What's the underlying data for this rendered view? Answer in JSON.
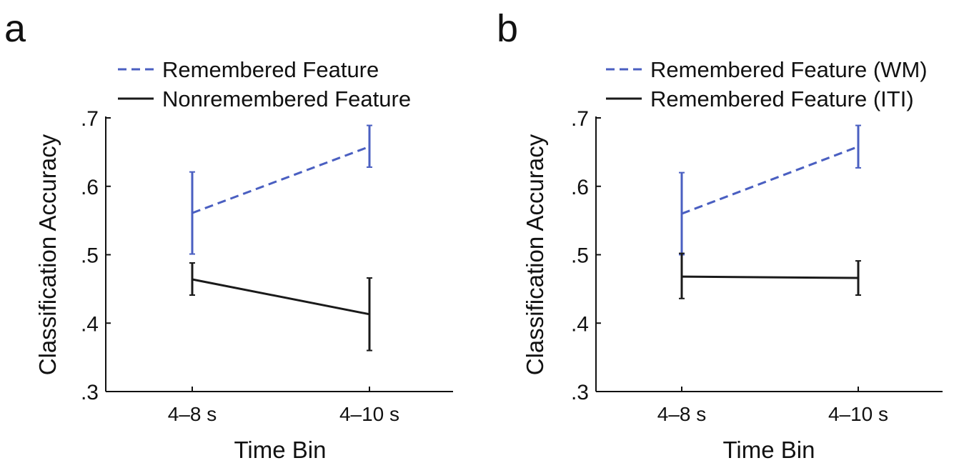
{
  "chart_data": [
    {
      "type": "line",
      "panel_label": "a",
      "categories": [
        "4–8 s",
        "4–10 s"
      ],
      "xlabel": "Time Bin",
      "ylabel": "Classification Accuracy",
      "ylim": [
        0.3,
        0.7
      ],
      "yticks": [
        0.3,
        0.4,
        0.5,
        0.6,
        0.7
      ],
      "ytick_labels": [
        ".3",
        ".4",
        ".5",
        ".6",
        ".7"
      ],
      "grid": false,
      "legend_position": "top",
      "series": [
        {
          "name": "Remembered Feature",
          "style": "dashed",
          "color": "#4a5fc1",
          "values": [
            0.561,
            0.658
          ],
          "error": [
            [
              0.501,
              0.621
            ],
            [
              0.628,
              0.689
            ]
          ]
        },
        {
          "name": "Nonremembered Feature",
          "style": "solid",
          "color": "#1a1a1a",
          "values": [
            0.464,
            0.413
          ],
          "error": [
            [
              0.441,
              0.488
            ],
            [
              0.36,
              0.466
            ]
          ]
        }
      ]
    },
    {
      "type": "line",
      "panel_label": "b",
      "categories": [
        "4–8 s",
        "4–10 s"
      ],
      "xlabel": "Time Bin",
      "ylabel": "Classification Accuracy",
      "ylim": [
        0.3,
        0.7
      ],
      "yticks": [
        0.3,
        0.4,
        0.5,
        0.6,
        0.7
      ],
      "ytick_labels": [
        ".3",
        ".4",
        ".5",
        ".6",
        ".7"
      ],
      "grid": false,
      "legend_position": "top",
      "series": [
        {
          "name": "Remembered Feature (WM)",
          "style": "dashed",
          "color": "#4a5fc1",
          "values": [
            0.56,
            0.658
          ],
          "error": [
            [
              0.5,
              0.62
            ],
            [
              0.627,
              0.689
            ]
          ]
        },
        {
          "name": "Remembered Feature (ITI)",
          "style": "solid",
          "color": "#1a1a1a",
          "values": [
            0.468,
            0.466
          ],
          "error": [
            [
              0.436,
              0.502
            ],
            [
              0.441,
              0.491
            ]
          ]
        }
      ]
    }
  ]
}
